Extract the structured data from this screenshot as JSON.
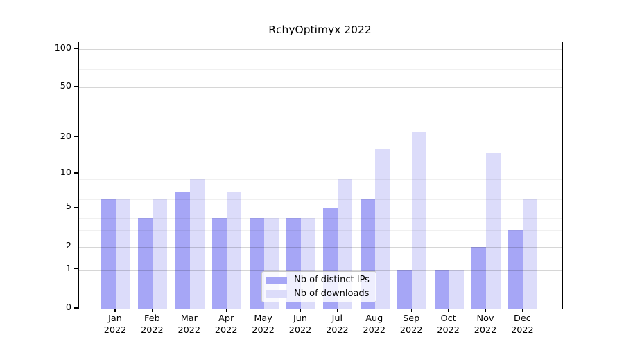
{
  "title": "RchyOptimyx 2022",
  "y_axis": {
    "ticks": [
      {
        "label": "100",
        "value": 100
      },
      {
        "label": "50",
        "value": 50
      },
      {
        "label": "20",
        "value": 20
      },
      {
        "label": "10",
        "value": 10
      },
      {
        "label": "5",
        "value": 5
      },
      {
        "label": "2",
        "value": 2
      },
      {
        "label": "1",
        "value": 1
      },
      {
        "label": "0",
        "value": 0
      }
    ]
  },
  "x_axis": {
    "months": [
      "Jan",
      "Feb",
      "Mar",
      "Apr",
      "May",
      "Jun",
      "Jul",
      "Aug",
      "Sep",
      "Oct",
      "Nov",
      "Dec"
    ],
    "year": "2022"
  },
  "legend": {
    "items": [
      {
        "label": "Nb of distinct IPs",
        "color": "#a6a6f6"
      },
      {
        "label": "Nb of downloads",
        "color": "#dcdcfa"
      }
    ]
  },
  "chart_data": {
    "type": "bar",
    "title": "RchyOptimyx 2022",
    "categories": [
      "Jan 2022",
      "Feb 2022",
      "Mar 2022",
      "Apr 2022",
      "May 2022",
      "Jun 2022",
      "Jul 2022",
      "Aug 2022",
      "Sep 2022",
      "Oct 2022",
      "Nov 2022",
      "Dec 2022"
    ],
    "series": [
      {
        "name": "Nb of distinct IPs",
        "color": "#a6a6f6",
        "values": [
          6,
          4,
          7,
          4,
          4,
          4,
          5,
          6,
          1,
          1,
          2,
          3
        ]
      },
      {
        "name": "Nb of downloads",
        "color": "#dcdcfa",
        "values": [
          6,
          6,
          9,
          7,
          4,
          4,
          9,
          16,
          22,
          1,
          15,
          6
        ]
      }
    ],
    "yscale": "log1p (position proportional to log10(1+v), linear-safe at 0)",
    "ylim": [
      0,
      113
    ],
    "y_major_gridlines": [
      1,
      2,
      5,
      10,
      20,
      50,
      100
    ],
    "y_minor_gridlines": [
      3,
      4,
      6,
      7,
      8,
      9,
      30,
      40,
      60,
      70,
      80,
      90
    ],
    "grid": "horizontal gridlines, drawn over bars",
    "legend_position": "inside lower-center",
    "xlabel": "",
    "ylabel": ""
  }
}
